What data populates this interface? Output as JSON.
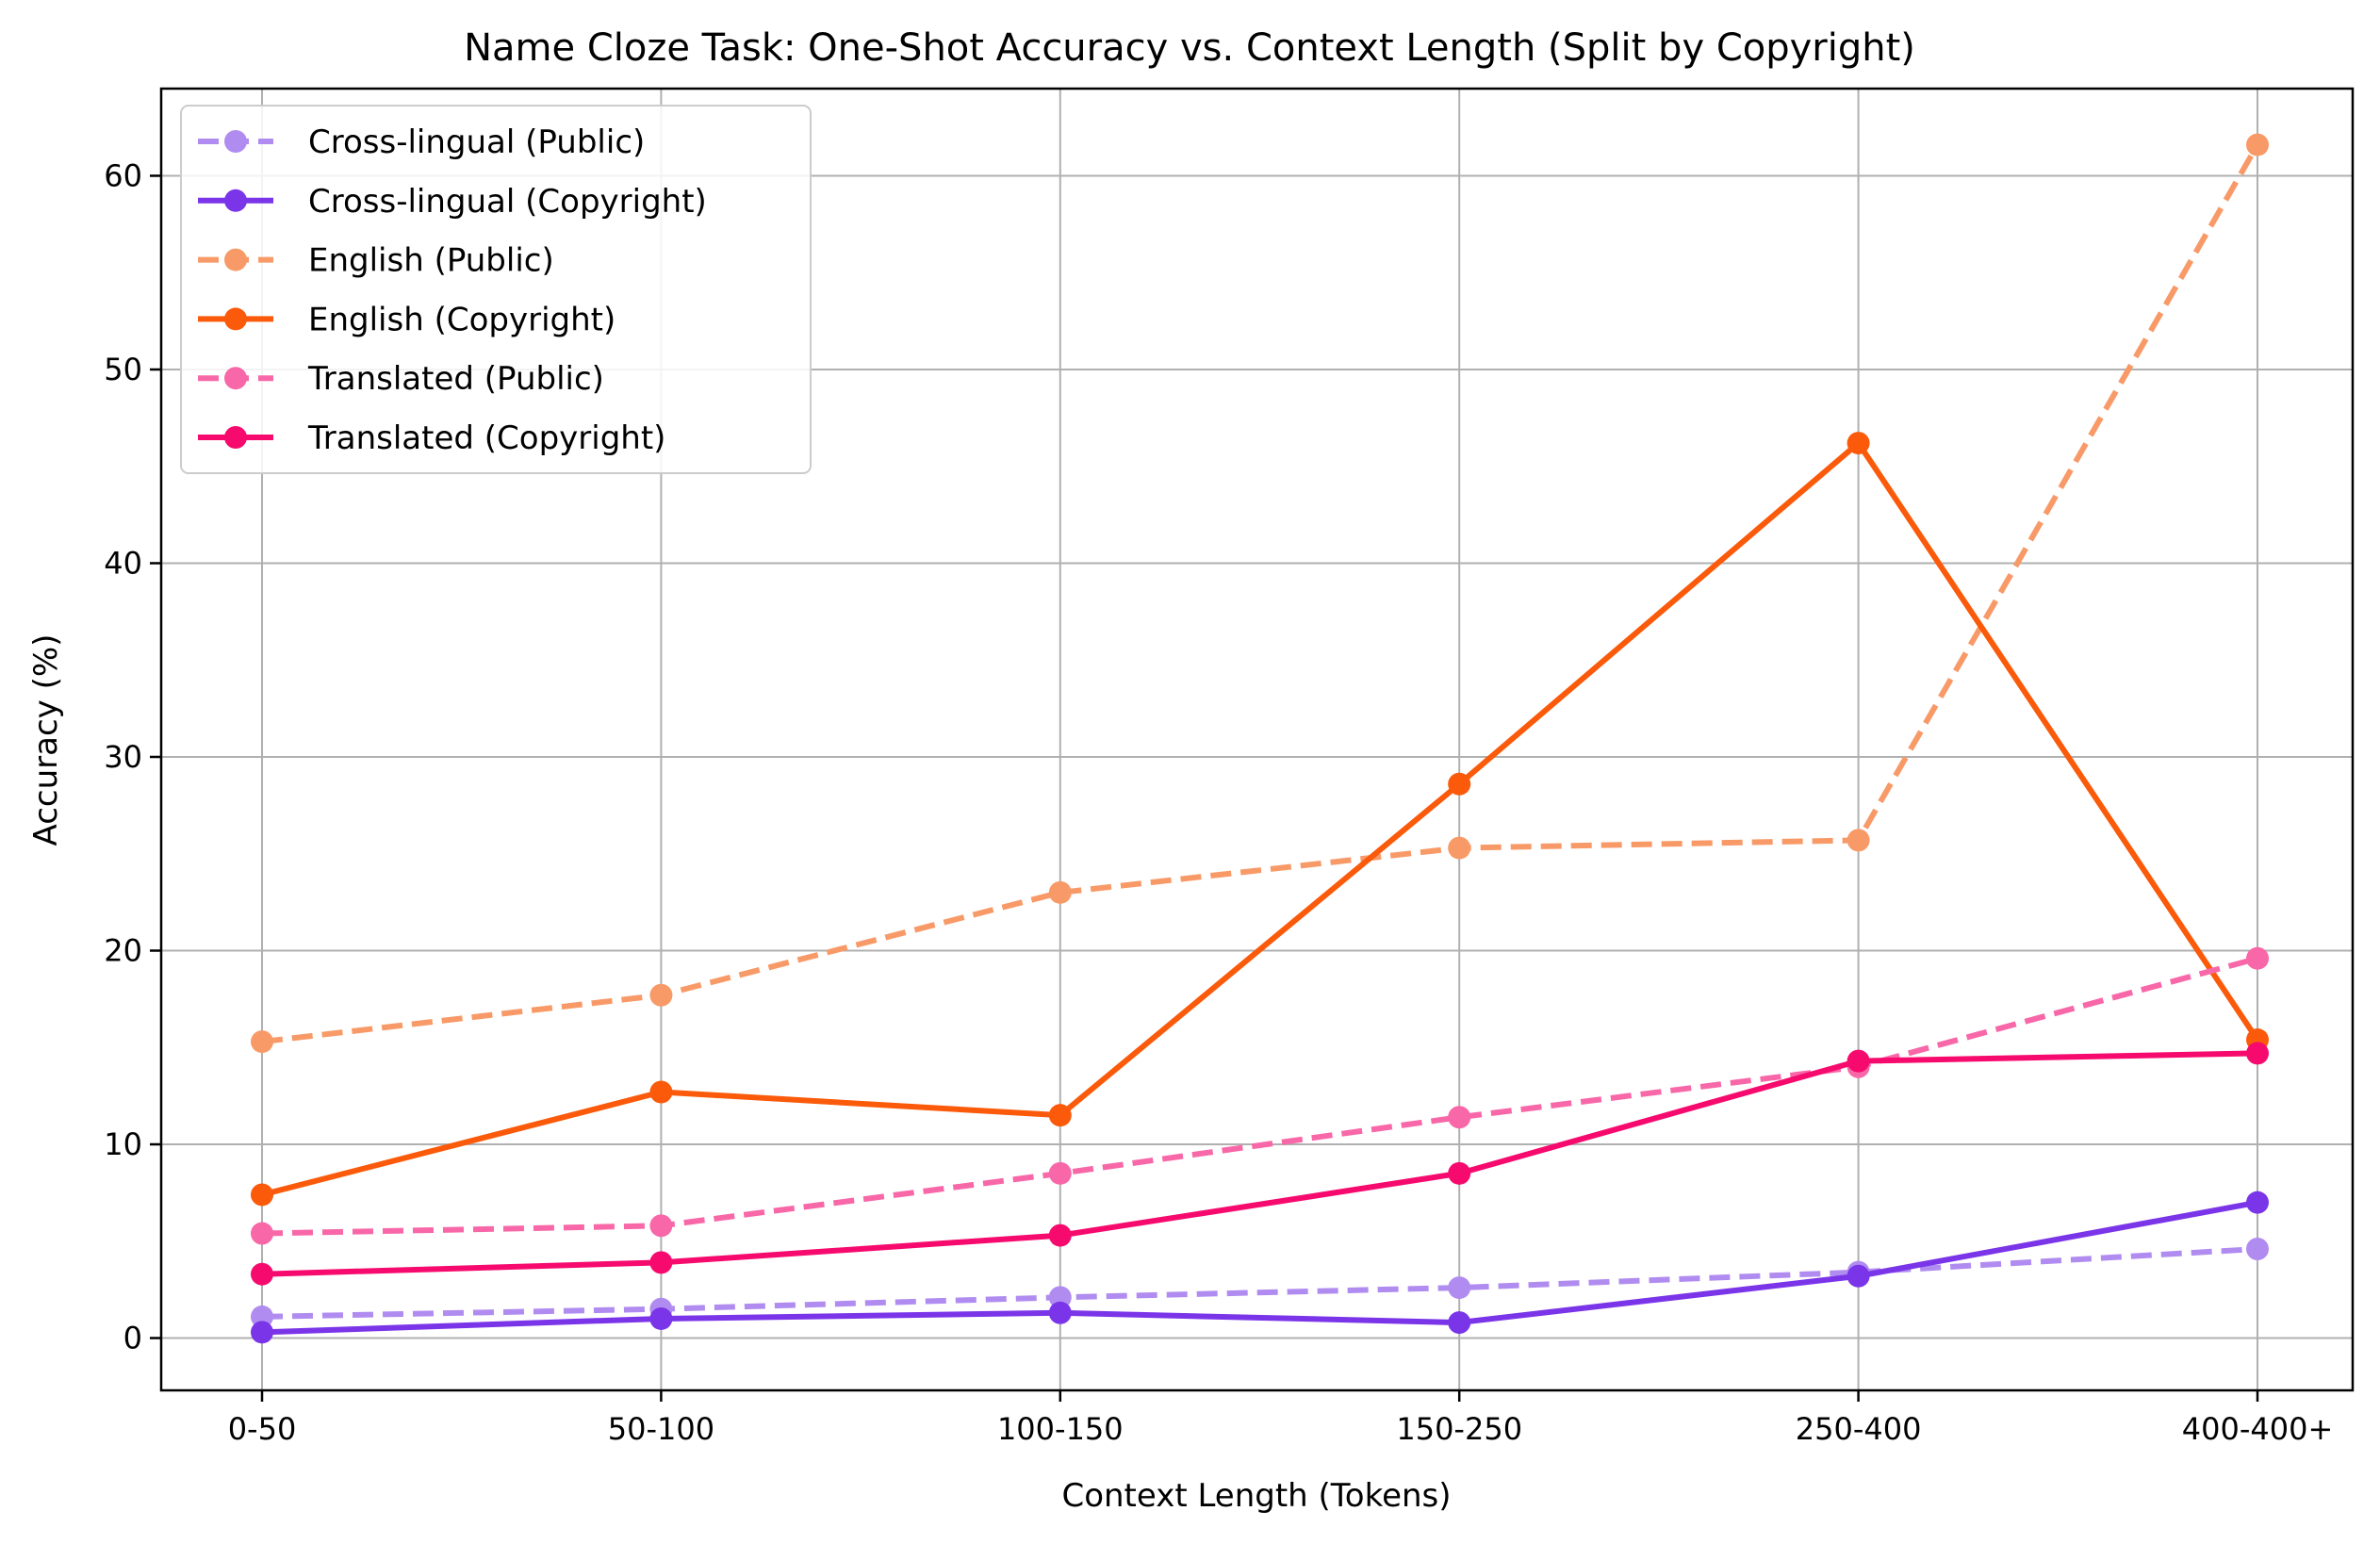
{
  "chart_data": {
    "type": "line",
    "title": "Name Cloze Task: One-Shot Accuracy vs. Context Length (Split by Copyright)",
    "xlabel": "Context Length (Tokens)",
    "ylabel": "Accuracy (%)",
    "categories": [
      "0-50",
      "50-100",
      "100-150",
      "150-250",
      "250-400",
      "400-400+"
    ],
    "ylim": [
      -2.7,
      64.5
    ],
    "yticks": [
      0,
      10,
      20,
      30,
      40,
      50,
      60
    ],
    "grid": true,
    "legend_position": "top-left",
    "series": [
      {
        "name": "Cross-lingual (Public)",
        "color": "#b18cf0",
        "style": "dashed",
        "values": [
          1.1,
          1.5,
          2.1,
          2.6,
          3.4,
          4.6
        ]
      },
      {
        "name": "Cross-lingual (Copyright)",
        "color": "#7b35e8",
        "style": "solid",
        "values": [
          0.3,
          1.0,
          1.3,
          0.8,
          3.2,
          7.0
        ]
      },
      {
        "name": "English (Public)",
        "color": "#f89a68",
        "style": "dashed",
        "values": [
          15.3,
          17.7,
          23.0,
          25.3,
          25.7,
          61.6
        ]
      },
      {
        "name": "English (Copyright)",
        "color": "#fa5a0a",
        "style": "solid",
        "values": [
          7.4,
          12.7,
          11.5,
          28.6,
          46.2,
          15.4
        ]
      },
      {
        "name": "Translated (Public)",
        "color": "#f867a8",
        "style": "dashed",
        "values": [
          5.4,
          5.8,
          8.5,
          11.4,
          14.0,
          19.6
        ]
      },
      {
        "name": "Translated (Copyright)",
        "color": "#f60a6e",
        "style": "solid",
        "values": [
          3.3,
          3.9,
          5.3,
          8.5,
          14.3,
          14.7
        ]
      }
    ]
  }
}
